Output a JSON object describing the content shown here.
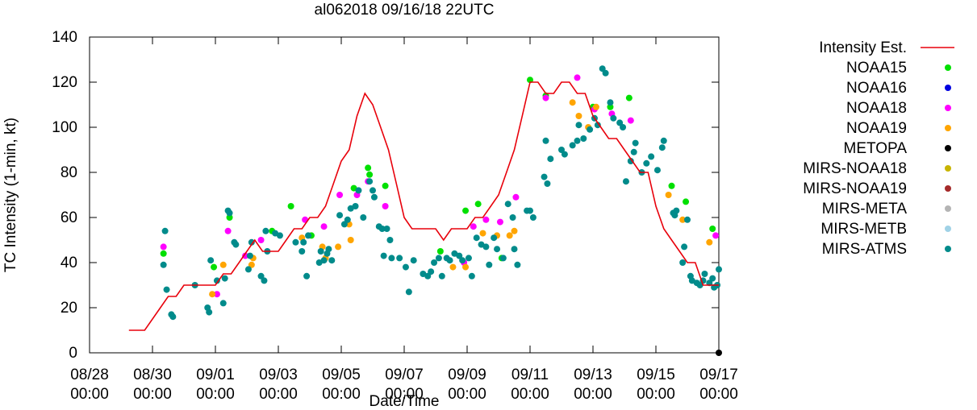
{
  "chart_data": {
    "type": "line+scatter",
    "title": "al062018 09/16/18 22UTC",
    "xlabel": "Date/Time",
    "ylabel": "TC Intensity (1-min, kt)",
    "ylim": [
      0,
      140
    ],
    "yticks": [
      0,
      20,
      40,
      60,
      80,
      100,
      120,
      140
    ],
    "xlim": [
      0,
      20
    ],
    "xunits": "days since 08/28 00:00",
    "xticks": [
      {
        "x": 0,
        "label": "08/28",
        "sublabel": "00:00"
      },
      {
        "x": 2,
        "label": "08/30",
        "sublabel": "00:00"
      },
      {
        "x": 4,
        "label": "09/01",
        "sublabel": "00:00"
      },
      {
        "x": 6,
        "label": "09/03",
        "sublabel": "00:00"
      },
      {
        "x": 8,
        "label": "09/05",
        "sublabel": "00:00"
      },
      {
        "x": 10,
        "label": "09/07",
        "sublabel": "00:00"
      },
      {
        "x": 12,
        "label": "09/09",
        "sublabel": "00:00"
      },
      {
        "x": 14,
        "label": "09/11",
        "sublabel": "00:00"
      },
      {
        "x": 16,
        "label": "09/13",
        "sublabel": "00:00"
      },
      {
        "x": 18,
        "label": "09/15",
        "sublabel": "00:00"
      },
      {
        "x": 20,
        "label": "09/17",
        "sublabel": "00:00"
      }
    ],
    "legend_position": "right, outside plot",
    "series": [
      {
        "name": "Intensity Est.",
        "kind": "line",
        "color": "#e8000b",
        "points": [
          [
            1.25,
            10
          ],
          [
            1.75,
            10
          ],
          [
            2.25,
            20
          ],
          [
            2.5,
            25
          ],
          [
            2.75,
            25
          ],
          [
            3.0,
            30
          ],
          [
            3.5,
            30
          ],
          [
            4.0,
            30
          ],
          [
            4.25,
            35
          ],
          [
            4.5,
            35
          ],
          [
            4.75,
            40
          ],
          [
            5.0,
            45
          ],
          [
            5.25,
            50
          ],
          [
            5.5,
            45
          ],
          [
            6.0,
            45
          ],
          [
            6.25,
            50
          ],
          [
            6.5,
            55
          ],
          [
            6.75,
            55
          ],
          [
            7.0,
            60
          ],
          [
            7.25,
            60
          ],
          [
            7.5,
            65
          ],
          [
            7.75,
            75
          ],
          [
            8.0,
            85
          ],
          [
            8.25,
            90
          ],
          [
            8.5,
            105
          ],
          [
            8.75,
            115
          ],
          [
            9.0,
            110
          ],
          [
            9.25,
            100
          ],
          [
            9.5,
            90
          ],
          [
            9.75,
            75
          ],
          [
            10.0,
            60
          ],
          [
            10.25,
            55
          ],
          [
            10.5,
            55
          ],
          [
            10.75,
            55
          ],
          [
            11.0,
            55
          ],
          [
            11.25,
            50
          ],
          [
            11.5,
            55
          ],
          [
            11.75,
            55
          ],
          [
            12.0,
            55
          ],
          [
            12.25,
            60
          ],
          [
            12.5,
            60
          ],
          [
            12.75,
            65
          ],
          [
            13.0,
            70
          ],
          [
            13.25,
            80
          ],
          [
            13.5,
            90
          ],
          [
            13.75,
            105
          ],
          [
            14.0,
            120
          ],
          [
            14.25,
            120
          ],
          [
            14.5,
            115
          ],
          [
            14.75,
            115
          ],
          [
            15.0,
            120
          ],
          [
            15.25,
            120
          ],
          [
            15.5,
            115
          ],
          [
            15.75,
            115
          ],
          [
            16.0,
            105
          ],
          [
            16.25,
            100
          ],
          [
            16.5,
            95
          ],
          [
            16.75,
            95
          ],
          [
            17.0,
            90
          ],
          [
            17.25,
            85
          ],
          [
            17.5,
            80
          ],
          [
            17.75,
            80
          ],
          [
            18.0,
            65
          ],
          [
            18.25,
            55
          ],
          [
            18.5,
            50
          ],
          [
            18.75,
            45
          ],
          [
            19.0,
            40
          ],
          [
            19.25,
            40
          ],
          [
            19.5,
            30
          ],
          [
            19.75,
            30
          ],
          [
            20.0,
            30
          ]
        ]
      },
      {
        "name": "NOAA15",
        "kind": "points",
        "color": "#00e000",
        "points": [
          [
            2.35,
            44
          ],
          [
            3.95,
            38
          ],
          [
            4.45,
            60
          ],
          [
            5.8,
            54
          ],
          [
            6.4,
            65
          ],
          [
            7.05,
            52
          ],
          [
            8.4,
            73
          ],
          [
            8.85,
            82
          ],
          [
            8.9,
            79
          ],
          [
            9.4,
            74
          ],
          [
            11.15,
            45
          ],
          [
            11.95,
            63
          ],
          [
            12.35,
            66
          ],
          [
            13.1,
            42
          ],
          [
            14.0,
            121
          ],
          [
            14.5,
            114
          ],
          [
            16.0,
            109
          ],
          [
            16.55,
            109
          ],
          [
            17.15,
            113
          ],
          [
            18.5,
            74
          ],
          [
            18.95,
            67
          ],
          [
            19.8,
            55
          ]
        ]
      },
      {
        "name": "NOAA16",
        "kind": "points",
        "color": "#0000e0",
        "points": []
      },
      {
        "name": "NOAA18",
        "kind": "points",
        "color": "#ff00ff",
        "points": [
          [
            2.35,
            47
          ],
          [
            4.05,
            26
          ],
          [
            4.4,
            54
          ],
          [
            4.95,
            43
          ],
          [
            5.45,
            50
          ],
          [
            6.85,
            59
          ],
          [
            7.45,
            56
          ],
          [
            7.95,
            70
          ],
          [
            8.5,
            70
          ],
          [
            8.85,
            76
          ],
          [
            9.4,
            65
          ],
          [
            11.9,
            40
          ],
          [
            12.2,
            56
          ],
          [
            12.6,
            59
          ],
          [
            13.05,
            58
          ],
          [
            13.55,
            69
          ],
          [
            14.5,
            113
          ],
          [
            15.5,
            122
          ],
          [
            16.05,
            108
          ],
          [
            16.6,
            106
          ],
          [
            17.2,
            103
          ],
          [
            19.9,
            52
          ]
        ]
      },
      {
        "name": "NOAA19",
        "kind": "points",
        "color": "#ffa500",
        "points": [
          [
            3.9,
            26
          ],
          [
            4.25,
            39
          ],
          [
            5.15,
            39
          ],
          [
            5.2,
            42
          ],
          [
            6.75,
            51
          ],
          [
            7.4,
            47
          ],
          [
            7.5,
            42
          ],
          [
            7.9,
            47
          ],
          [
            8.25,
            57
          ],
          [
            8.3,
            50
          ],
          [
            11.55,
            38
          ],
          [
            11.95,
            38
          ],
          [
            12.5,
            53
          ],
          [
            12.95,
            52
          ],
          [
            13.35,
            52
          ],
          [
            13.5,
            54
          ],
          [
            15.35,
            111
          ],
          [
            15.55,
            105
          ],
          [
            15.85,
            100
          ],
          [
            16.1,
            109
          ],
          [
            18.4,
            70
          ],
          [
            18.85,
            59
          ],
          [
            19.7,
            49
          ]
        ]
      },
      {
        "name": "METOPA",
        "kind": "points",
        "color": "#000000",
        "points": [
          [
            20.0,
            0
          ]
        ]
      },
      {
        "name": "MIRS-NOAA18",
        "kind": "points",
        "color": "#c8b400",
        "points": []
      },
      {
        "name": "MIRS-NOAA19",
        "kind": "points",
        "color": "#a52a2a",
        "points": []
      },
      {
        "name": "MIRS-META",
        "kind": "points",
        "color": "#b4b4b4",
        "points": []
      },
      {
        "name": "MIRS-METB",
        "kind": "points",
        "color": "#a0d2e6",
        "points": []
      },
      {
        "name": "MIRS-ATMS",
        "kind": "points",
        "color": "#008b8b",
        "points": [
          [
            2.35,
            39
          ],
          [
            2.4,
            54
          ],
          [
            2.45,
            28
          ],
          [
            2.6,
            17
          ],
          [
            2.65,
            16
          ],
          [
            3.35,
            30
          ],
          [
            3.75,
            20
          ],
          [
            3.8,
            18
          ],
          [
            3.85,
            41
          ],
          [
            4.05,
            32
          ],
          [
            4.25,
            22
          ],
          [
            4.3,
            33
          ],
          [
            4.4,
            63
          ],
          [
            4.45,
            62
          ],
          [
            4.6,
            49
          ],
          [
            4.65,
            48
          ],
          [
            5.05,
            37
          ],
          [
            5.1,
            43
          ],
          [
            5.15,
            49
          ],
          [
            5.45,
            34
          ],
          [
            5.55,
            32
          ],
          [
            5.6,
            54
          ],
          [
            5.65,
            45
          ],
          [
            5.9,
            53
          ],
          [
            6.05,
            52
          ],
          [
            6.55,
            49
          ],
          [
            6.75,
            45
          ],
          [
            6.8,
            49
          ],
          [
            6.9,
            34
          ],
          [
            6.95,
            52
          ],
          [
            7.3,
            40
          ],
          [
            7.35,
            45
          ],
          [
            7.45,
            41
          ],
          [
            7.55,
            44
          ],
          [
            7.6,
            46
          ],
          [
            7.7,
            41
          ],
          [
            7.95,
            61
          ],
          [
            8.1,
            57
          ],
          [
            8.2,
            59
          ],
          [
            8.3,
            64
          ],
          [
            8.45,
            65
          ],
          [
            8.55,
            72
          ],
          [
            8.7,
            60
          ],
          [
            8.9,
            76
          ],
          [
            9.0,
            72
          ],
          [
            9.05,
            69
          ],
          [
            9.2,
            56
          ],
          [
            9.3,
            55
          ],
          [
            9.35,
            43
          ],
          [
            9.45,
            55
          ],
          [
            9.55,
            50
          ],
          [
            9.6,
            42
          ],
          [
            9.85,
            42
          ],
          [
            10.05,
            38
          ],
          [
            10.15,
            27
          ],
          [
            10.3,
            41
          ],
          [
            10.6,
            35
          ],
          [
            10.75,
            34
          ],
          [
            10.85,
            36
          ],
          [
            10.95,
            40
          ],
          [
            11.1,
            42
          ],
          [
            11.2,
            34
          ],
          [
            11.35,
            42
          ],
          [
            11.45,
            41
          ],
          [
            11.6,
            44
          ],
          [
            11.75,
            43
          ],
          [
            11.85,
            41
          ],
          [
            12.05,
            42
          ],
          [
            12.15,
            34
          ],
          [
            12.3,
            51
          ],
          [
            12.45,
            48
          ],
          [
            12.6,
            47
          ],
          [
            12.7,
            39
          ],
          [
            12.85,
            51
          ],
          [
            12.95,
            46
          ],
          [
            13.15,
            42
          ],
          [
            13.3,
            66
          ],
          [
            13.45,
            60
          ],
          [
            13.5,
            46
          ],
          [
            13.6,
            39
          ],
          [
            13.9,
            63
          ],
          [
            14.0,
            63
          ],
          [
            14.1,
            60
          ],
          [
            14.45,
            78
          ],
          [
            14.5,
            94
          ],
          [
            14.55,
            75
          ],
          [
            14.65,
            86
          ],
          [
            15.0,
            90
          ],
          [
            15.1,
            88
          ],
          [
            15.35,
            92
          ],
          [
            15.5,
            94
          ],
          [
            15.55,
            101
          ],
          [
            15.7,
            95
          ],
          [
            15.9,
            99
          ],
          [
            16.05,
            104
          ],
          [
            16.15,
            101
          ],
          [
            16.3,
            126
          ],
          [
            16.4,
            124
          ],
          [
            16.55,
            111
          ],
          [
            16.65,
            104
          ],
          [
            16.85,
            102
          ],
          [
            16.95,
            100
          ],
          [
            17.05,
            76
          ],
          [
            17.2,
            85
          ],
          [
            17.3,
            89
          ],
          [
            17.35,
            93
          ],
          [
            17.55,
            80
          ],
          [
            17.7,
            84
          ],
          [
            17.85,
            87
          ],
          [
            18.05,
            81
          ],
          [
            18.2,
            91
          ],
          [
            18.25,
            94
          ],
          [
            18.55,
            62
          ],
          [
            18.6,
            61
          ],
          [
            18.65,
            63
          ],
          [
            18.85,
            40
          ],
          [
            18.9,
            47
          ],
          [
            19.0,
            59
          ],
          [
            19.1,
            34
          ],
          [
            19.15,
            32
          ],
          [
            19.3,
            31
          ],
          [
            19.4,
            30
          ],
          [
            19.5,
            32
          ],
          [
            19.55,
            35
          ],
          [
            19.7,
            31
          ],
          [
            19.8,
            33
          ],
          [
            19.85,
            29
          ],
          [
            19.95,
            30
          ],
          [
            20.0,
            37
          ]
        ]
      }
    ]
  }
}
